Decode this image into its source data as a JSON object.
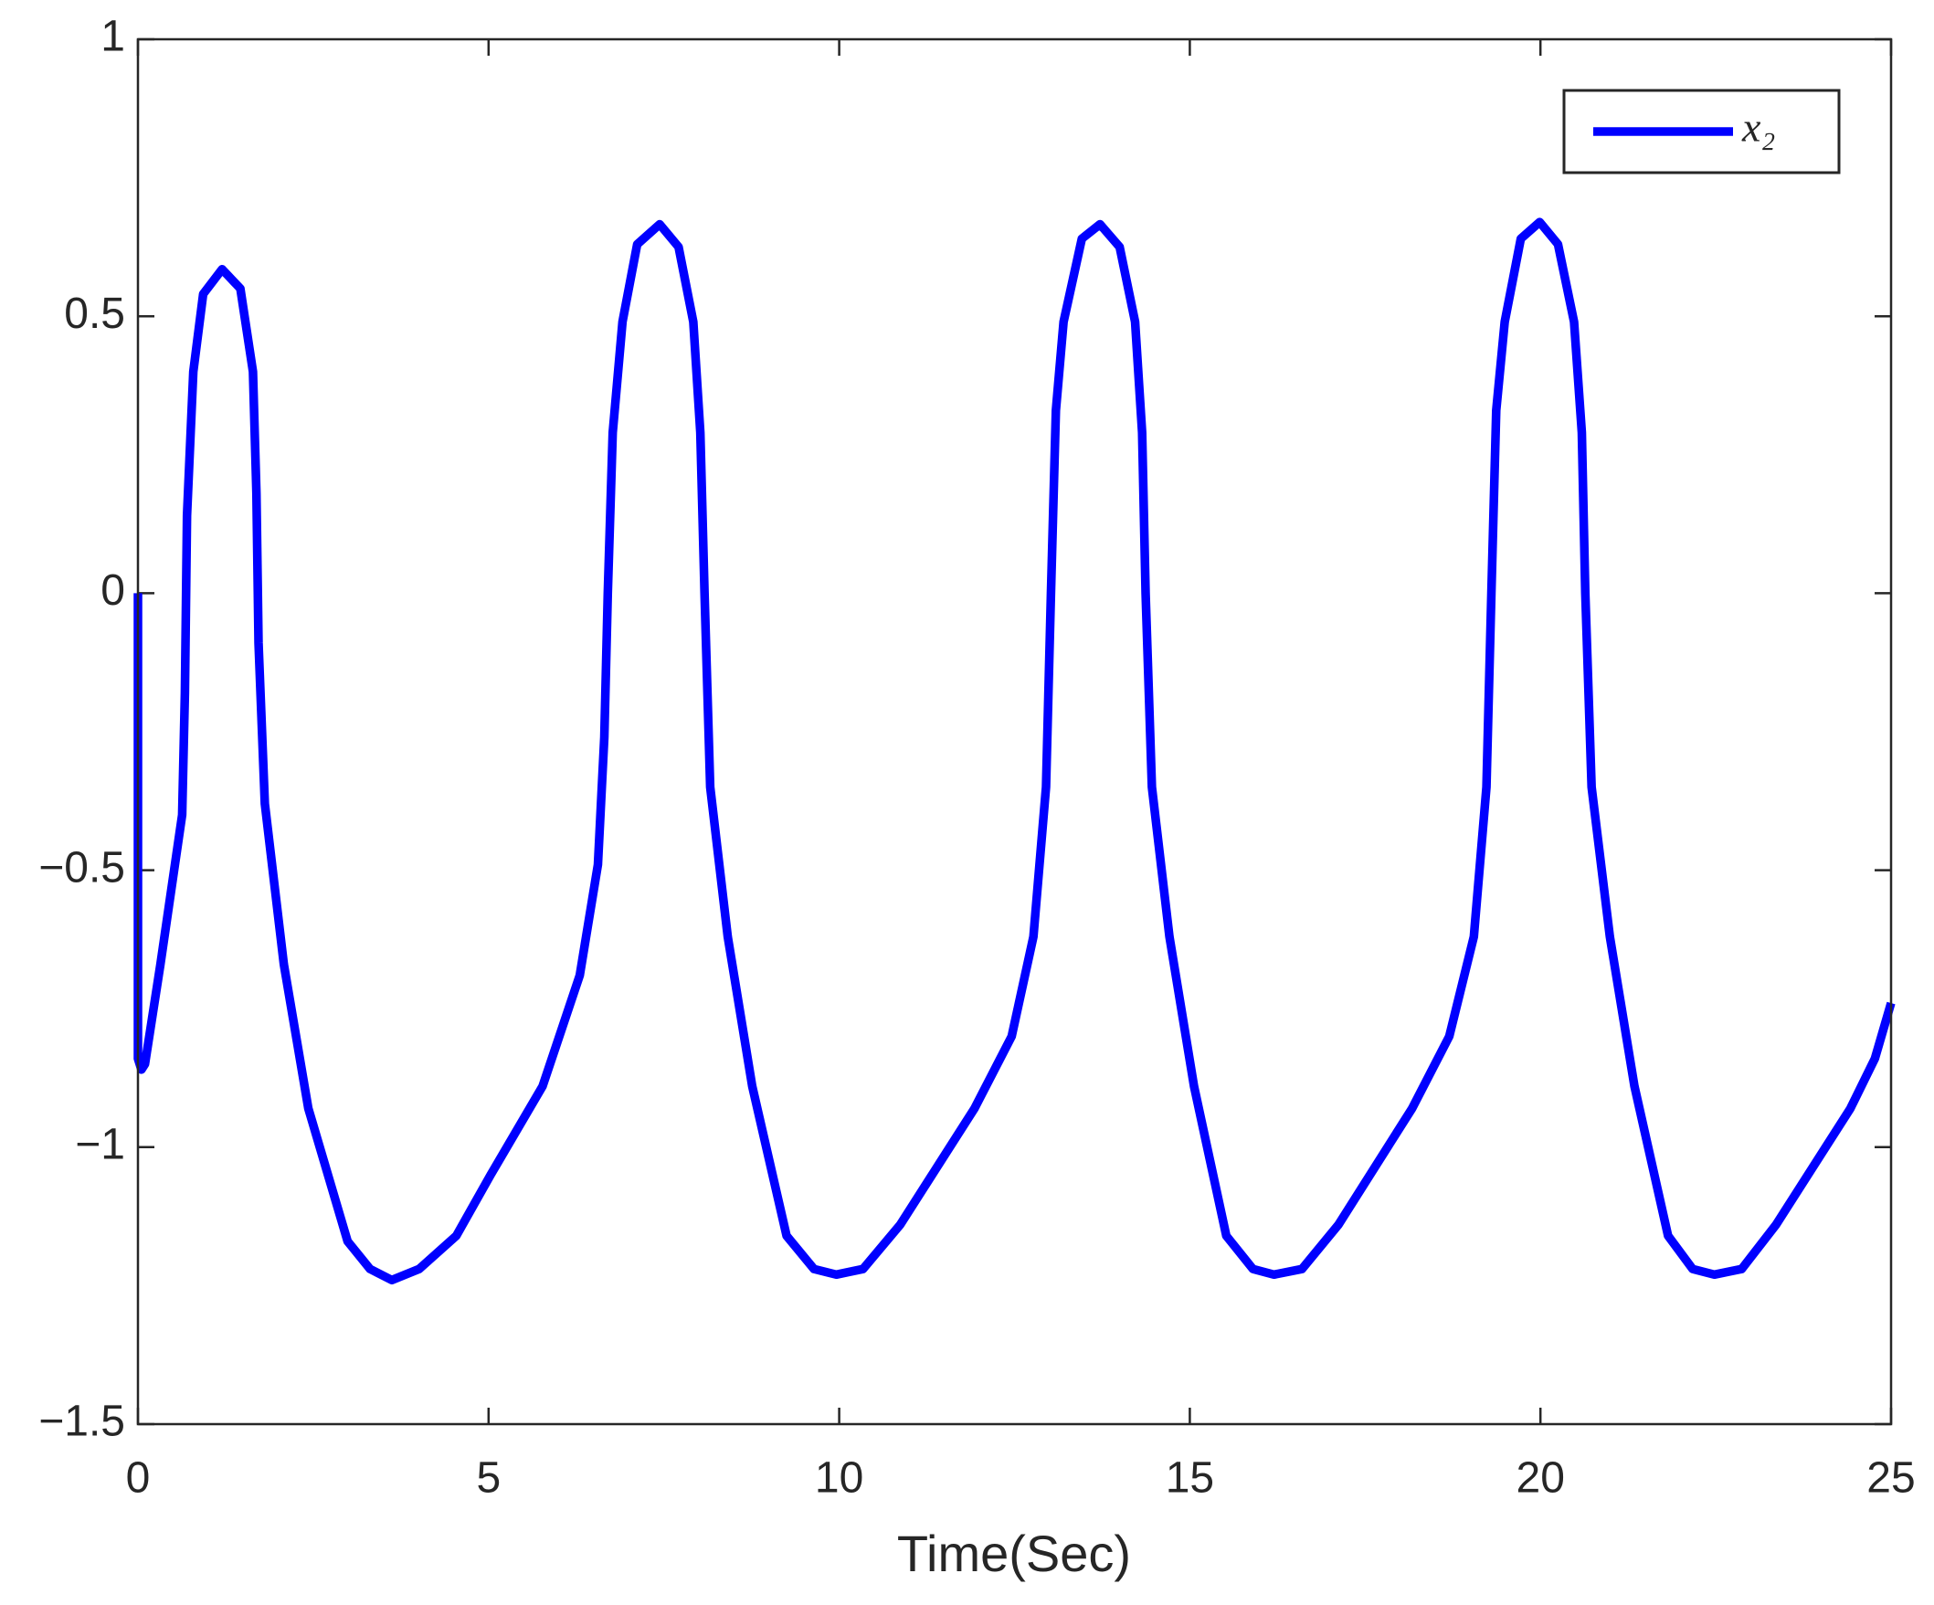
{
  "chart_data": {
    "type": "line",
    "xlabel": "Time(Sec)",
    "x": [
      0,
      0,
      0.05,
      0.1,
      0.32,
      0.63,
      0.67,
      0.7,
      0.79,
      0.93,
      1.2,
      1.46,
      1.64,
      1.69,
      1.72,
      1.81,
      2.08,
      2.43,
      2.99,
      3.31,
      3.62,
      4.01,
      4.54,
      5.03,
      5.77,
      6.3,
      6.56,
      6.65,
      6.7,
      6.77,
      6.91,
      7.12,
      7.44,
      7.71,
      7.92,
      8.02,
      8.08,
      8.16,
      8.41,
      8.76,
      9.25,
      9.64,
      9.96,
      10.34,
      10.87,
      11.93,
      12.46,
      12.77,
      12.95,
      13.02,
      13.09,
      13.2,
      13.46,
      13.72,
      14.0,
      14.22,
      14.32,
      14.37,
      14.46,
      14.71,
      15.06,
      15.52,
      15.9,
      16.2,
      16.6,
      17.12,
      18.17,
      18.7,
      19.05,
      19.23,
      19.3,
      19.37,
      19.49,
      19.72,
      19.99,
      20.25,
      20.48,
      20.59,
      20.64,
      20.73,
      20.99,
      21.34,
      21.82,
      22.17,
      22.48,
      22.87,
      23.36,
      24.42,
      24.77,
      25
    ],
    "series": [
      {
        "name": "x₂",
        "color": "#0000ff",
        "values": [
          0,
          -0.84,
          -0.86,
          -0.85,
          -0.67,
          -0.4,
          -0.18,
          0.14,
          0.4,
          0.54,
          0.585,
          0.55,
          0.4,
          0.18,
          -0.09,
          -0.38,
          -0.67,
          -0.93,
          -1.17,
          -1.22,
          -1.24,
          -1.22,
          -1.16,
          -1.05,
          -0.89,
          -0.69,
          -0.49,
          -0.26,
          0,
          0.29,
          0.49,
          0.63,
          0.666,
          0.625,
          0.49,
          0.29,
          0,
          -0.35,
          -0.62,
          -0.89,
          -1.16,
          -1.22,
          -1.23,
          -1.22,
          -1.14,
          -0.93,
          -0.8,
          -0.62,
          -0.35,
          0,
          0.33,
          0.49,
          0.64,
          0.666,
          0.625,
          0.49,
          0.29,
          0,
          -0.35,
          -0.62,
          -0.89,
          -1.16,
          -1.22,
          -1.23,
          -1.22,
          -1.14,
          -0.93,
          -0.8,
          -0.62,
          -0.35,
          0,
          0.33,
          0.49,
          0.64,
          0.67,
          0.63,
          0.49,
          0.29,
          0,
          -0.35,
          -0.62,
          -0.89,
          -1.16,
          -1.22,
          -1.23,
          -1.22,
          -1.14,
          -0.93,
          -0.84,
          -0.74
        ]
      }
    ],
    "xlim": [
      0,
      25
    ],
    "xticks": [
      0,
      5,
      10,
      15,
      20,
      25
    ],
    "ylim": [
      -1.5,
      1
    ],
    "yticks": [
      -1.5,
      -1,
      -0.5,
      0,
      0.5,
      1
    ],
    "legend": "northeast",
    "grid": false
  }
}
